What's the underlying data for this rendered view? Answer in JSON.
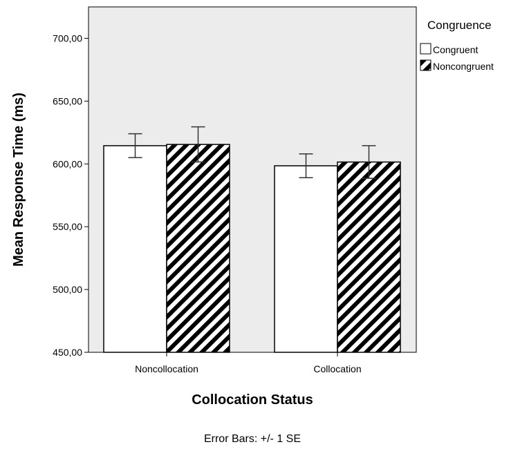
{
  "chart_data": {
    "type": "bar",
    "xlabel": "Collocation Status",
    "ylabel": "Mean Response Time (ms)",
    "categories": [
      "Noncollocation",
      "Collocation"
    ],
    "series": [
      {
        "name": "Congruent",
        "values": [
          614.5,
          598.5
        ],
        "se": [
          9.5,
          9.5
        ],
        "fill": "#ffffff"
      },
      {
        "name": "Noncongruent",
        "values": [
          615.5,
          601.5
        ],
        "se": [
          14,
          13
        ],
        "fill": "hatch"
      }
    ],
    "ylim": [
      450,
      725
    ],
    "yticks": [
      450,
      500,
      550,
      600,
      650,
      700
    ],
    "ytick_labels": [
      "450,00",
      "500,00",
      "550,00",
      "600,00",
      "650,00",
      "700,00"
    ],
    "grid": false,
    "legend": {
      "title": "Congruence",
      "position": "right"
    },
    "footnote": "Error Bars: +/- 1 SE",
    "colors": {
      "plot_background": "#ececec",
      "bar_outline": "#000000"
    }
  }
}
